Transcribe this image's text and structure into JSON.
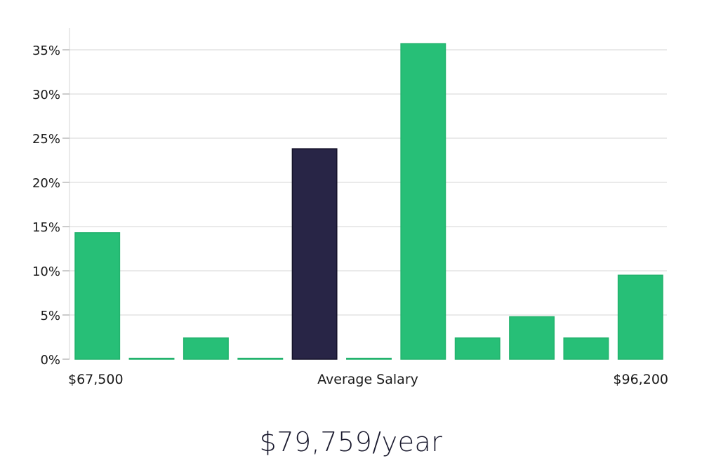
{
  "chart_data": {
    "type": "bar",
    "title": "$79,759/year",
    "xlabel": "Average Salary",
    "x_start_label": "$67,500",
    "x_end_label": "$96,200",
    "ylabel": "",
    "ylim": [
      0,
      37.5
    ],
    "yticks": [
      "0%",
      "5%",
      "10%",
      "15%",
      "20%",
      "25%",
      "30%",
      "35%"
    ],
    "ytick_values": [
      0,
      5,
      10,
      15,
      20,
      25,
      30,
      35
    ],
    "grid": true,
    "values": [
      14.3,
      0.1,
      2.4,
      0.1,
      23.8,
      0.1,
      35.7,
      2.4,
      4.8,
      2.4,
      9.5
    ],
    "highlight_index": 4,
    "colors": {
      "bar": "#27bf77",
      "bar_edge": "#22b36d",
      "highlight": "#282546",
      "highlight_edge": "#141228",
      "grid": "#e3e3e3",
      "text": "#1a1a1a"
    }
  }
}
